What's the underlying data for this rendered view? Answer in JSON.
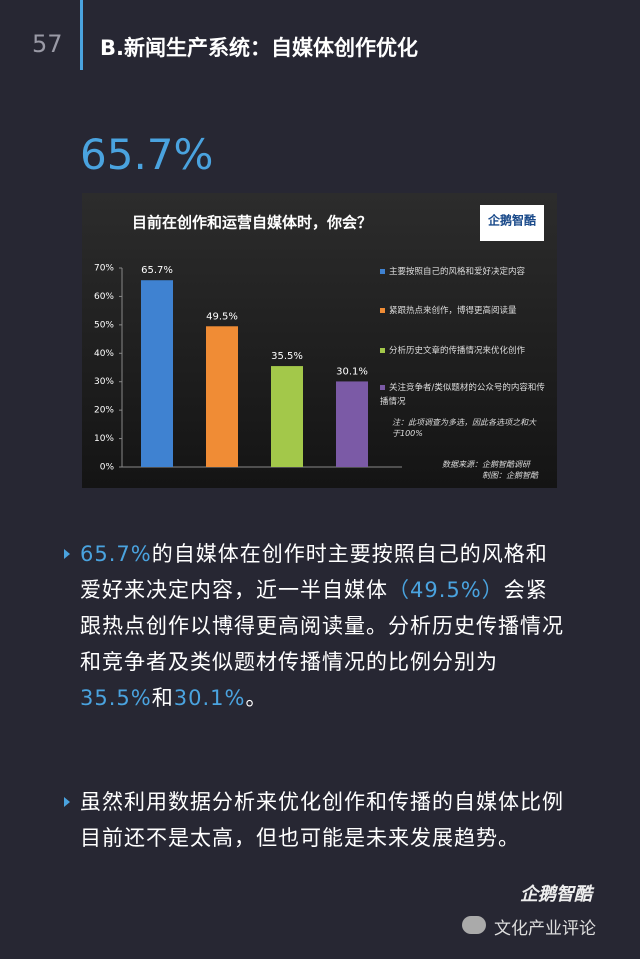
{
  "page_number": "57",
  "header": "B.新闻生产系统：自媒体创作优化",
  "headline": "65.7%",
  "chart_data": {
    "type": "bar",
    "title": "目前在创作和运营自媒体时，你会？",
    "logo": "企鹅智酷",
    "categories": [
      "主要按照自己的风格和爱好决定内容",
      "紧跟热点来创作，博得更高阅读量",
      "分析历史文章的传播情况来优化创作",
      "关注竞争者/类似题材的公众号的内容和传播情况"
    ],
    "values": [
      65.7,
      49.5,
      35.5,
      30.1
    ],
    "value_labels": [
      "65.7%",
      "49.5%",
      "35.5%",
      "30.1%"
    ],
    "colors": [
      "#3f82d1",
      "#f08c35",
      "#a3c84a",
      "#7b5aa6"
    ],
    "ylim": [
      0,
      70
    ],
    "yticks": [
      {
        "value": 0,
        "label": "0%"
      },
      {
        "value": 10,
        "label": "10%"
      },
      {
        "value": 20,
        "label": "20%"
      },
      {
        "value": 30,
        "label": "30%"
      },
      {
        "value": 40,
        "label": "40%"
      },
      {
        "value": 50,
        "label": "50%"
      },
      {
        "value": 60,
        "label": "60%"
      },
      {
        "value": 70,
        "label": "70%"
      }
    ],
    "note": "注：此项调查为多选，因此各选项之和大于100%",
    "source": "数据来源：企鹅智酷调研",
    "credit": "制图：企鹅智酷"
  },
  "highlight_color": "#4aa3df",
  "paragraphs": [
    [
      {
        "text": "65.7%",
        "highlight": true
      },
      {
        "text": "的自媒体在创作时主要按照自己的风格和爱好来决定内容，近一半自媒体",
        "highlight": false
      },
      {
        "text": "（49.5%）",
        "highlight": true
      },
      {
        "text": "会紧跟热点创作以博得更高阅读量。分析历史传播情况和竞争者及类似题材传播情况的比例分别为",
        "highlight": false
      },
      {
        "text": "35.5%",
        "highlight": true
      },
      {
        "text": "和",
        "highlight": false
      },
      {
        "text": "30.1%",
        "highlight": true
      },
      {
        "text": "。",
        "highlight": false
      }
    ],
    [
      {
        "text": "虽然利用数据分析来优化创作和传播的自媒体比例目前还不是太高，但也可能是未来发展趋势。",
        "highlight": false
      }
    ]
  ],
  "footer": {
    "logo": "企鹅智酷",
    "watermark": "文化产业评论"
  }
}
